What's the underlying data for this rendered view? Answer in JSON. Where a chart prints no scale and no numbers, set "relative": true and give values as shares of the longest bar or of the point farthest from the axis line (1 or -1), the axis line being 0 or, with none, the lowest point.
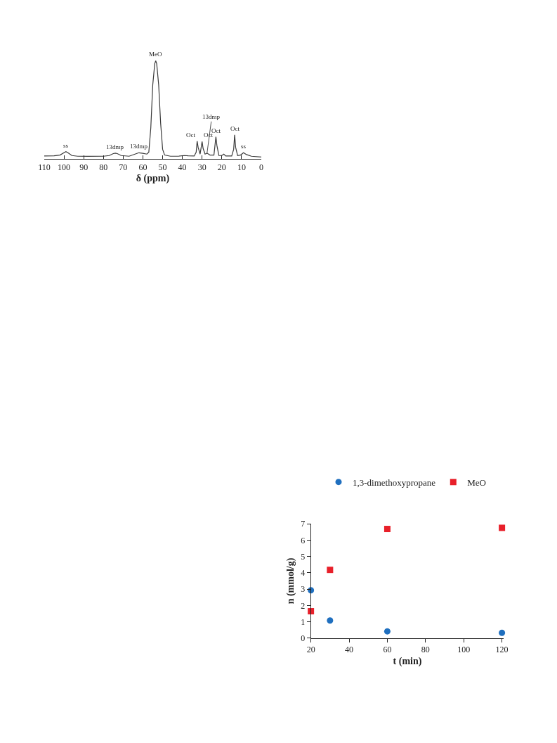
{
  "chart_data": [
    {
      "type": "line",
      "relative": true,
      "xlabel": "δ (ppm)",
      "xlim": [
        110,
        0
      ],
      "xticks": [
        110,
        100,
        90,
        80,
        70,
        60,
        50,
        40,
        30,
        20,
        10,
        0
      ],
      "tick_labels": "x",
      "series": [
        {
          "color": "#3a3a3a",
          "x": [
            110,
            105,
            102,
            100,
            99,
            98,
            96,
            93,
            88,
            80,
            77,
            75,
            74,
            73,
            71,
            67,
            64,
            62,
            60,
            58,
            57,
            56,
            55,
            54,
            53.5,
            53,
            52,
            51,
            50,
            49,
            46,
            42,
            39,
            37,
            34,
            33,
            32.5,
            32,
            31,
            30,
            29.5,
            28.5,
            27.5,
            26,
            24,
            23,
            22.5,
            21.5,
            20,
            19,
            18,
            15,
            14,
            13.5,
            13,
            12,
            10.5,
            9,
            7.5,
            5,
            0
          ],
          "values": [
            0.01,
            0.012,
            0.02,
            0.045,
            0.056,
            0.045,
            0.015,
            0.008,
            0.007,
            0.008,
            0.015,
            0.035,
            0.04,
            0.035,
            0.015,
            0.008,
            0.03,
            0.044,
            0.038,
            0.03,
            0.05,
            0.3,
            0.75,
            0.97,
            1.0,
            0.97,
            0.75,
            0.35,
            0.08,
            0.02,
            0.008,
            0.008,
            0.015,
            0.012,
            0.01,
            0.05,
            0.165,
            0.1,
            0.03,
            0.16,
            0.09,
            0.03,
            0.04,
            0.02,
            0.02,
            0.21,
            0.12,
            0.015,
            0.015,
            0.03,
            0.01,
            0.01,
            0.08,
            0.23,
            0.1,
            0.015,
            0.02,
            0.044,
            0.025,
            0.008,
            0
          ]
        }
      ],
      "annotations": [
        {
          "text": "ss",
          "x": 99,
          "y": 0.056
        },
        {
          "text": "13dmp",
          "x": 74,
          "y": 0.04
        },
        {
          "text": "13dmp",
          "x": 62,
          "y": 0.044
        },
        {
          "text": "MeO",
          "x": 53.5,
          "y": 1.0
        },
        {
          "text": "Oct",
          "x": 32.5,
          "y": 0.165
        },
        {
          "text": "Oct",
          "x": 30,
          "y": 0.16
        },
        {
          "text": "13dmp",
          "x": 27.5,
          "y": 0.04
        },
        {
          "text": "Oct",
          "x": 23,
          "y": 0.21
        },
        {
          "text": "Oct",
          "x": 13.5,
          "y": 0.23
        },
        {
          "text": "ss",
          "x": 9,
          "y": 0.044
        }
      ]
    },
    {
      "type": "scatter",
      "xlabel": "t (min)",
      "ylabel": "n (mmol/g)",
      "xlim": [
        20,
        121
      ],
      "xticks": [
        20,
        40,
        60,
        80,
        100,
        120
      ],
      "ylim": [
        0,
        7
      ],
      "yticks": [
        0,
        1,
        2,
        3,
        4,
        5,
        6,
        7
      ],
      "grid": false,
      "legend": "top",
      "x": [
        20,
        30,
        60,
        120
      ],
      "series": [
        {
          "name": "1,3-dimethoxypropane",
          "color": "#1f6fbf",
          "marker": "circle",
          "values": [
            2.93,
            1.08,
            0.42,
            0.33
          ]
        },
        {
          "name": "MeO",
          "color": "#e8202a",
          "marker": "square",
          "values": [
            1.65,
            4.18,
            6.68,
            6.75
          ]
        }
      ]
    }
  ]
}
